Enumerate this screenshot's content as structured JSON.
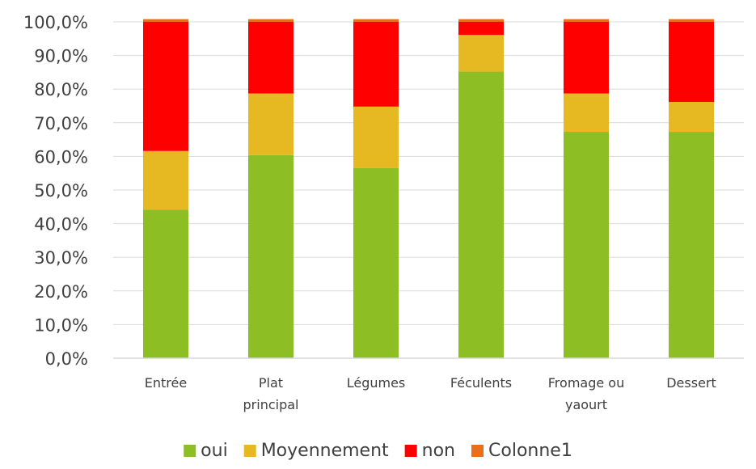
{
  "chart_data": {
    "type": "bar",
    "stacked": true,
    "categories": [
      [
        "Entrée"
      ],
      [
        "Plat",
        "principal"
      ],
      [
        "Légumes"
      ],
      [
        "Féculents"
      ],
      [
        "Fromage ou",
        "yaourt"
      ],
      [
        "Dessert"
      ]
    ],
    "series": [
      {
        "name": "oui",
        "color": "#8DBE23",
        "values": [
          44.2,
          60.4,
          56.5,
          85.2,
          67.3,
          67.3
        ]
      },
      {
        "name": "Moyennement",
        "color": "#E6B922",
        "values": [
          17.4,
          18.3,
          18.3,
          10.9,
          11.4,
          8.9
        ]
      },
      {
        "name": "non",
        "color": "#FF0000",
        "values": [
          38.4,
          21.3,
          25.2,
          3.9,
          21.3,
          23.8
        ]
      },
      {
        "name": "Colonne1",
        "color": "#E8701A",
        "values": [
          0.8,
          0.8,
          0.8,
          0.8,
          0.8,
          0.8
        ]
      }
    ],
    "ylim": [
      0,
      100
    ],
    "yticks": [
      "0,0%",
      "10,0%",
      "20,0%",
      "30,0%",
      "40,0%",
      "50,0%",
      "60,0%",
      "70,0%",
      "80,0%",
      "90,0%",
      "100,0%"
    ],
    "grid": true,
    "legend_position": "bottom"
  }
}
